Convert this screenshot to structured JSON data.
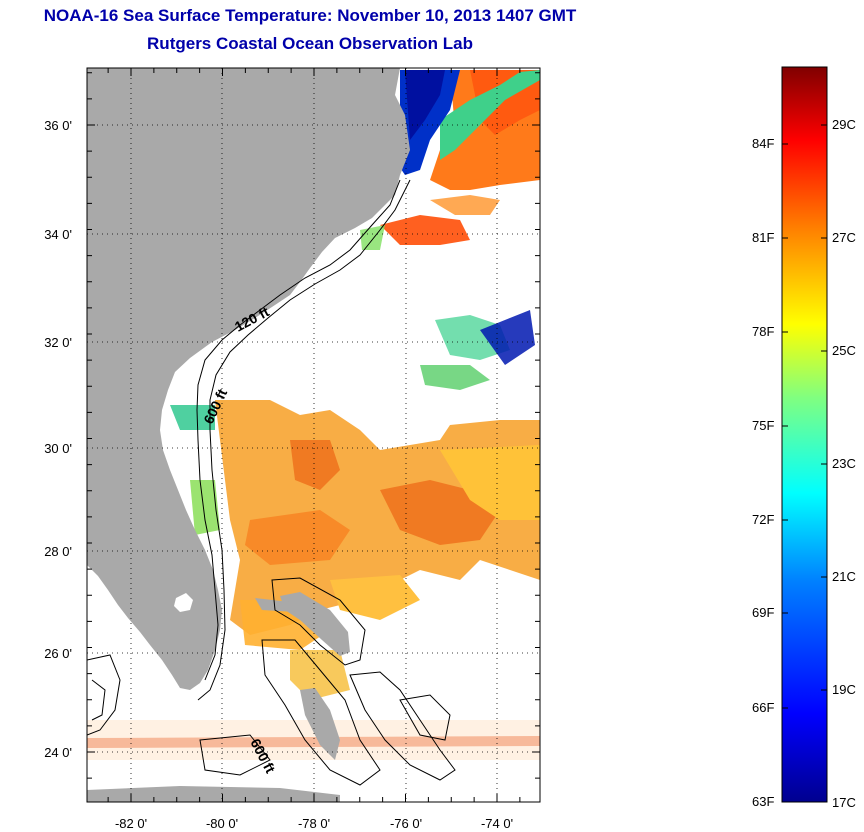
{
  "title": {
    "line1": "NOAA-16 Sea Surface Temperature:  November 10, 2013 1407 GMT",
    "line2": "Rutgers Coastal Ocean Observation Lab"
  },
  "map": {
    "lat_labels": [
      "36 0'",
      "34 0'",
      "32 0'",
      "30 0'",
      "28 0'",
      "26 0'",
      "24 0'"
    ],
    "lon_labels": [
      "-82 0'",
      "-80 0'",
      "-78 0'",
      "-76 0'",
      "-74 0'"
    ],
    "contour_labels": [
      "120 ft",
      "600 ft",
      "600 ft"
    ],
    "colors": {
      "land": "#a9a9a9",
      "ocean_nodata": "#ffffff"
    }
  },
  "colorbar": {
    "fahrenheit": [
      "84F",
      "81F",
      "78F",
      "75F",
      "72F",
      "69F",
      "66F",
      "63F"
    ],
    "celsius": [
      "29C",
      "27C",
      "25C",
      "23C",
      "21C",
      "19C",
      "17C"
    ],
    "stops": [
      "#00008f",
      "#0000ff",
      "#0080ff",
      "#00ffff",
      "#80ff80",
      "#ffff00",
      "#ff8000",
      "#ff0000",
      "#800000"
    ]
  }
}
